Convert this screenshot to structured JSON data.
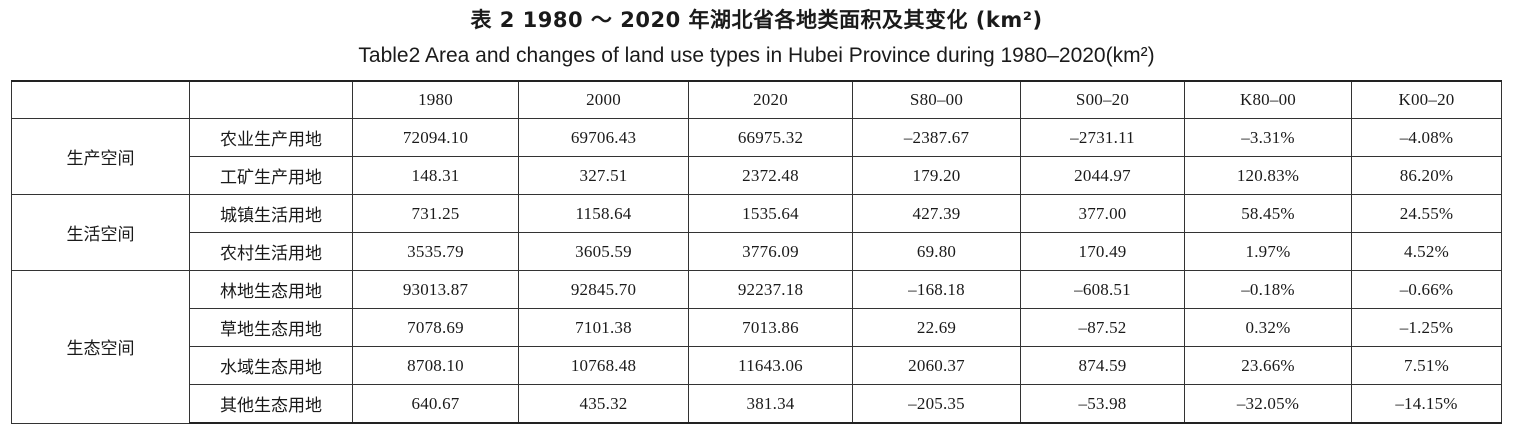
{
  "caption": {
    "chinese": "表 2 1980 ～ 2020 年湖北省各地类面积及其变化 (km²)",
    "english": "Table2  Area and changes of land use types in Hubei Province during 1980–2020(km²)"
  },
  "table": {
    "headers": [
      "",
      "",
      "1980",
      "2000",
      "2020",
      "S80–00",
      "S00–20",
      "K80–00",
      "K00–20"
    ],
    "groups": [
      {
        "name": "生产空间",
        "rows": [
          {
            "type": "农业生产用地",
            "values": [
              "72094.10",
              "69706.43",
              "66975.32",
              "–2387.67",
              "–2731.11",
              "–3.31%",
              "–4.08%"
            ]
          },
          {
            "type": "工矿生产用地",
            "values": [
              "148.31",
              "327.51",
              "2372.48",
              "179.20",
              "2044.97",
              "120.83%",
              "86.20%"
            ]
          }
        ]
      },
      {
        "name": "生活空间",
        "rows": [
          {
            "type": "城镇生活用地",
            "values": [
              "731.25",
              "1158.64",
              "1535.64",
              "427.39",
              "377.00",
              "58.45%",
              "24.55%"
            ]
          },
          {
            "type": "农村生活用地",
            "values": [
              "3535.79",
              "3605.59",
              "3776.09",
              "69.80",
              "170.49",
              "1.97%",
              "4.52%"
            ]
          }
        ]
      },
      {
        "name": "生态空间",
        "rows": [
          {
            "type": "林地生态用地",
            "values": [
              "93013.87",
              "92845.70",
              "92237.18",
              "–168.18",
              "–608.51",
              "–0.18%",
              "–0.66%"
            ]
          },
          {
            "type": "草地生态用地",
            "values": [
              "7078.69",
              "7101.38",
              "7013.86",
              "22.69",
              "–87.52",
              "0.32%",
              "–1.25%"
            ]
          },
          {
            "type": "水域生态用地",
            "values": [
              "8708.10",
              "10768.48",
              "11643.06",
              "2060.37",
              "874.59",
              "23.66%",
              "7.51%"
            ]
          },
          {
            "type": "其他生态用地",
            "values": [
              "640.67",
              "435.32",
              "381.34",
              "–205.35",
              "–53.98",
              "–32.05%",
              "–14.15%"
            ]
          }
        ]
      }
    ]
  }
}
